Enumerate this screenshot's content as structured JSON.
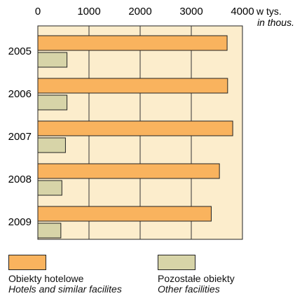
{
  "chart_data": {
    "type": "bar",
    "orientation": "horizontal",
    "categories": [
      "2005",
      "2006",
      "2007",
      "2008",
      "2009"
    ],
    "series": [
      {
        "name": "Obiekty hotelowe",
        "name_en": "Hotels and similar facilites",
        "color": "#f9b35e",
        "values": [
          3700,
          3710,
          3810,
          3550,
          3390
        ]
      },
      {
        "name": "Pozostałe obiekty",
        "name_en": "Other facilities",
        "color": "#d7d4a8",
        "values": [
          570,
          570,
          540,
          470,
          450
        ]
      }
    ],
    "x_ticks": [
      "0",
      "1000",
      "2000",
      "3000",
      "4000"
    ],
    "xlim": [
      0,
      4000
    ],
    "unit_label": "w tys.",
    "unit_label_en": "in thous.",
    "grid": true,
    "plot_background": "#fcedcc",
    "legend_position": "bottom"
  }
}
